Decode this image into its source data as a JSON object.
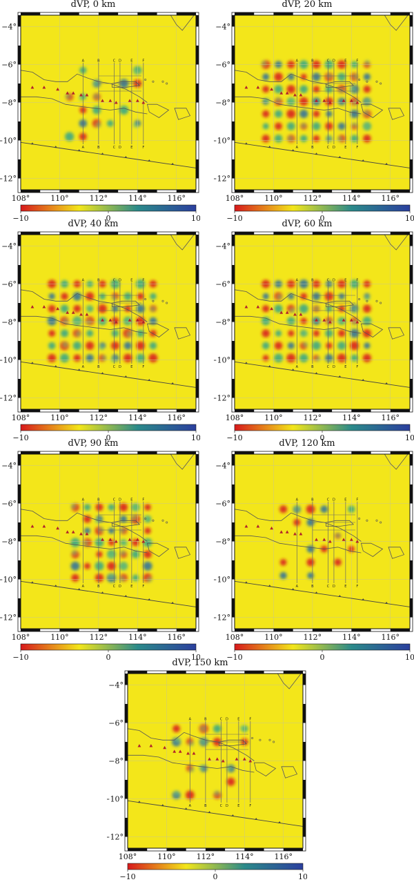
{
  "panels": [
    {
      "title": "dVP, 0 km",
      "pattern": "sparse"
    },
    {
      "title": "dVP, 20 km",
      "pattern": "dense"
    },
    {
      "title": "dVP, 40 km",
      "pattern": "dense"
    },
    {
      "title": "dVP, 60 km",
      "pattern": "dense"
    },
    {
      "title": "dVP, 90 km",
      "pattern": "medium"
    },
    {
      "title": "dVP, 120 km",
      "pattern": "sparse"
    },
    {
      "title": "dVP, 150 km",
      "pattern": "sparse"
    }
  ],
  "axes": {
    "lon_ticks": [
      108,
      110,
      112,
      114,
      116
    ],
    "lat_ticks": [
      -4,
      -6,
      -8,
      -10,
      -12
    ],
    "lon_tick_labels": [
      "108°",
      "110°",
      "112°",
      "114°",
      "116°"
    ],
    "lat_tick_labels": [
      "−4°",
      "−6°",
      "−8°",
      "−10°",
      "−12°"
    ],
    "lon_range": [
      108,
      117
    ],
    "lat_range": [
      -12.6,
      -3.4
    ]
  },
  "colorbar": {
    "min": -10,
    "max": 10,
    "tick_labels": [
      "−10",
      "0",
      "10"
    ],
    "colors": [
      "#d7191c",
      "#f3e61a",
      "#2b8a8a",
      "#2b3f9e"
    ]
  },
  "profiles": {
    "labels_top": [
      "A",
      "B",
      "C",
      "D",
      "E",
      "F"
    ],
    "labels_bottom": [
      "A",
      "B",
      "C",
      "D",
      "E",
      "F"
    ],
    "lons": [
      111.2,
      112.0,
      112.8,
      113.1,
      113.7,
      114.3
    ]
  },
  "colors": {
    "background": "#f3e61a",
    "coast": "#555555",
    "volcano": "#b0222b",
    "anomaly_low": "#d7191c",
    "anomaly_high": "#2b6fa0"
  }
}
